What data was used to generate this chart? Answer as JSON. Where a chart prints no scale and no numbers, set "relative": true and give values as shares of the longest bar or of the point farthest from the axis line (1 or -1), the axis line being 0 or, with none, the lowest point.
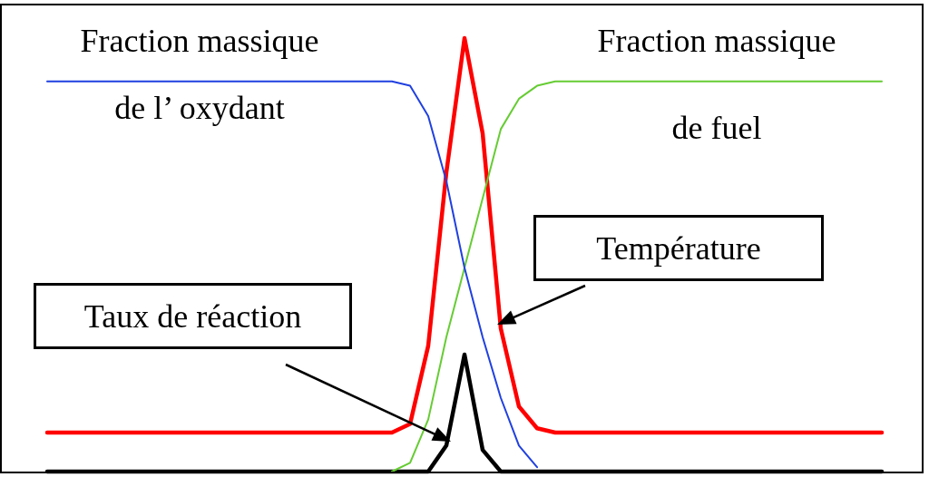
{
  "chart_data": {
    "type": "line",
    "relative": true,
    "legend": false,
    "grid": false,
    "marker": "none",
    "categories": [
      null,
      null,
      null,
      null,
      null,
      null,
      null,
      null,
      null,
      null,
      null,
      null,
      null,
      null,
      null,
      null,
      null,
      null,
      null,
      null,
      null,
      null,
      null,
      null,
      null,
      null,
      null,
      null,
      null,
      null,
      null,
      null,
      null,
      null,
      null,
      null,
      null,
      null,
      null,
      null,
      null,
      null,
      null,
      null,
      null,
      null,
      null
    ],
    "series": [
      {
        "name": "Fraction massique\nde l’ oxydant",
        "color": "#2040e0",
        "values": [
          0.9,
          0.9,
          0.9,
          0.9,
          0.9,
          0.9,
          0.9,
          0.9,
          0.9,
          0.9,
          0.9,
          0.9,
          0.9,
          0.9,
          0.9,
          0.9,
          0.9,
          0.9,
          0.9,
          0.9,
          0.89,
          0.82,
          0.67,
          0.47,
          0.31,
          0.17,
          0.06,
          0.01,
          null,
          null,
          null,
          null,
          null,
          null,
          null,
          null,
          null,
          null,
          null,
          null,
          null,
          null,
          null,
          null,
          null,
          null,
          null
        ]
      },
      {
        "name": "Fraction massique\nde fuel",
        "color": "#66cc33",
        "values": [
          null,
          null,
          null,
          null,
          null,
          null,
          null,
          null,
          null,
          null,
          null,
          null,
          null,
          null,
          null,
          null,
          null,
          null,
          null,
          0,
          0.02,
          0.12,
          0.31,
          0.47,
          0.63,
          0.79,
          0.86,
          0.89,
          0.9,
          0.9,
          0.9,
          0.9,
          0.9,
          0.9,
          0.9,
          0.9,
          0.9,
          0.9,
          0.9,
          0.9,
          0.9,
          0.9,
          0.9,
          0.9,
          0.9,
          0.9,
          0.9
        ]
      },
      {
        "color": "#ff0000",
        "values": [
          0.09,
          0.09,
          0.09,
          0.09,
          0.09,
          0.09,
          0.09,
          0.09,
          0.09,
          0.09,
          0.09,
          0.09,
          0.09,
          0.09,
          0.09,
          0.09,
          0.09,
          0.09,
          0.09,
          0.09,
          0.11,
          0.29,
          0.69,
          1,
          0.78,
          0.33,
          0.15,
          0.1,
          0.09,
          0.09,
          0.09,
          0.09,
          0.09,
          0.09,
          0.09,
          0.09,
          0.09,
          0.09,
          0.09,
          0.09,
          0.09,
          0.09,
          0.09,
          0.09,
          0.09,
          0.09,
          0.09
        ]
      },
      {
        "color": "#000000",
        "values": [
          0,
          0,
          0,
          0,
          0,
          0,
          0,
          0,
          0,
          0,
          0,
          0,
          0,
          0,
          0,
          0,
          0,
          0,
          0,
          0,
          0,
          0,
          0.06,
          0.27,
          0.05,
          0,
          0,
          0,
          0,
          0,
          0,
          0,
          0,
          0,
          0,
          0,
          0,
          0,
          0,
          0,
          0,
          0,
          0,
          0,
          0,
          0,
          0
        ]
      }
    ],
    "annotations": [
      "Température",
      "Taux de réaction"
    ]
  }
}
